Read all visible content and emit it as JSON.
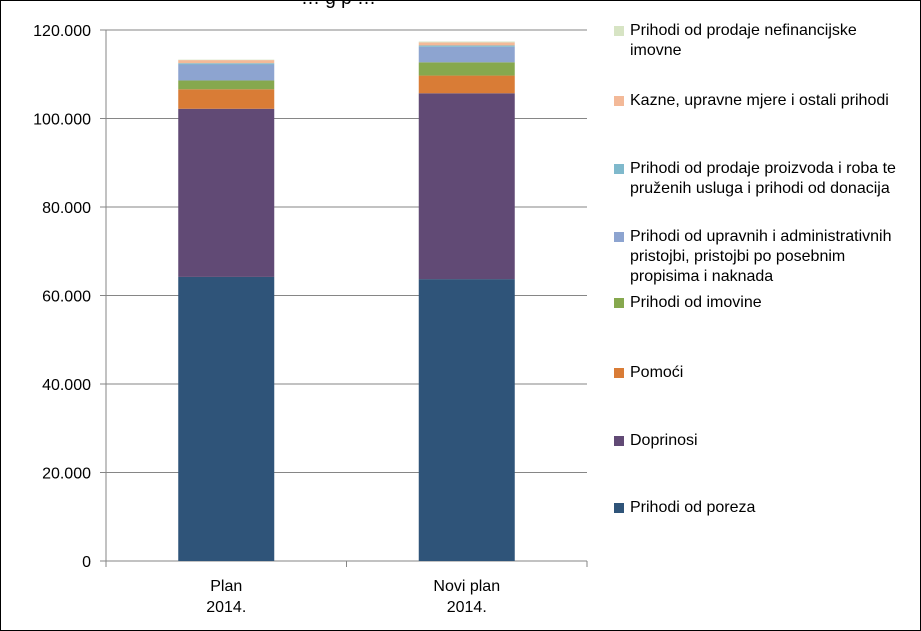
{
  "chart_data": {
    "type": "bar",
    "stacked": true,
    "title": "… g p …",
    "categories": [
      "Plan\n2014.",
      "Novi plan\n2014."
    ],
    "ylim": [
      0,
      120000
    ],
    "yticks": [
      "0",
      "20.000",
      "40.000",
      "60.000",
      "80.000",
      "100.000",
      "120.000"
    ],
    "grid": true,
    "legend_position": "right",
    "series": [
      {
        "name": "Prihodi od poreza",
        "color": "#2f5479",
        "values": [
          64200,
          63700
        ]
      },
      {
        "name": "Doprinosi",
        "color": "#614a75",
        "values": [
          38000,
          42000
        ]
      },
      {
        "name": "Pomoći",
        "color": "#d97c36",
        "values": [
          4400,
          4000
        ]
      },
      {
        "name": "Prihodi od imovine",
        "color": "#86a84e",
        "values": [
          2000,
          3000
        ]
      },
      {
        "name": "Prihodi od upravnih i administrativnih pristojbi, pristojbi po posebnim propisima i  naknada",
        "color": "#8da4d0",
        "values": [
          3600,
          3500
        ]
      },
      {
        "name": "Prihodi od prodaje proizvoda i roba te pruženih usluga i prihodi od donacija",
        "color": "#7fb9cc",
        "values": [
          300,
          300
        ]
      },
      {
        "name": "Kazne, upravne mjere i ostali prihodi",
        "color": "#f3b998",
        "values": [
          700,
          700
        ]
      },
      {
        "name": "Prihodi od prodaje nefinancijske imovne",
        "color": "#d7e4c4",
        "values": [
          100,
          200
        ]
      }
    ]
  }
}
